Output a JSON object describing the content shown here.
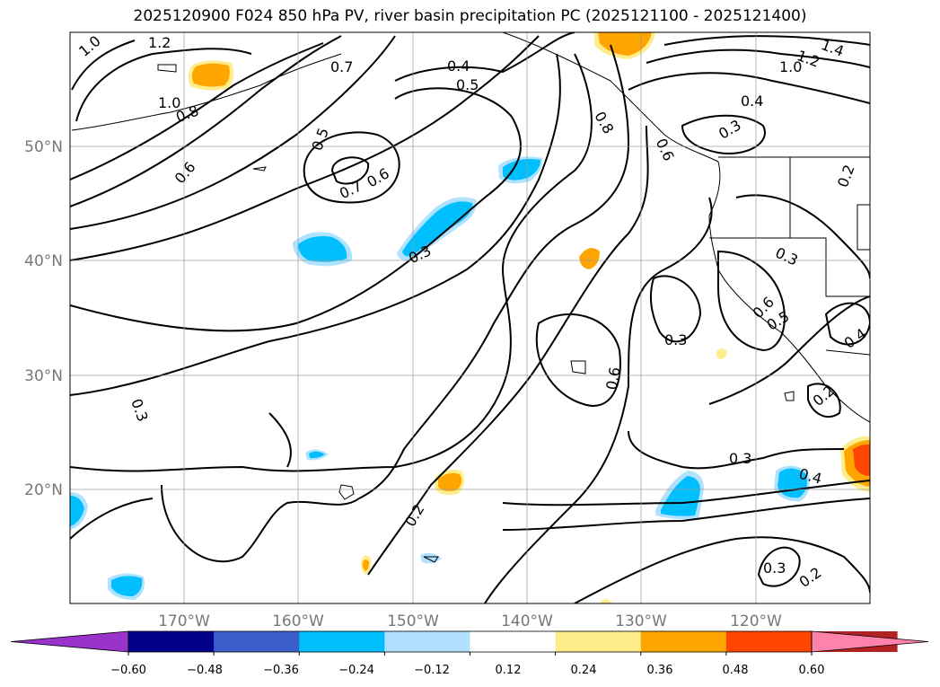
{
  "title": "2025120900 F024 850 hPa PV, river basin precipitation PC (2025121100 - 2025121400)",
  "map": {
    "lon_range": [
      -180,
      -110
    ],
    "lat_range": [
      10,
      60
    ],
    "lat_labels": [
      "50°N",
      "40°N",
      "30°N",
      "20°N"
    ],
    "lon_labels": [
      "170°W",
      "160°W",
      "150°W",
      "140°W",
      "130°W",
      "120°W"
    ],
    "grid": true,
    "contour_labels": [
      "1.0",
      "1.2",
      "0.7",
      "0.4",
      "0.5",
      "1.4",
      "1.2",
      "1.0",
      "0.4",
      "0.3",
      "1.0",
      "0.8",
      "0.6",
      "0.5",
      "0.7",
      "0.6",
      "0.8",
      "0.6",
      "0.2",
      "0.3",
      "0.3",
      "0.6",
      "0.5",
      "0.3",
      "0.4",
      "0.6",
      "0.3",
      "0.3",
      "0.4",
      "0.2",
      "0.3",
      "0.2",
      "0.2"
    ]
  },
  "colorbar": {
    "ticks": [
      "−0.60",
      "−0.48",
      "−0.36",
      "−0.24",
      "−0.12",
      "0.12",
      "0.24",
      "0.36",
      "0.48",
      "0.60"
    ],
    "colors": [
      "#9933cc",
      "#00008b",
      "#3a5fcd",
      "#00bfff",
      "#b0e2ff",
      "#ffffff",
      "#ffec8b",
      "#ffa500",
      "#ff4500",
      "#b22222",
      "#ff82ab"
    ],
    "extend": "both"
  }
}
